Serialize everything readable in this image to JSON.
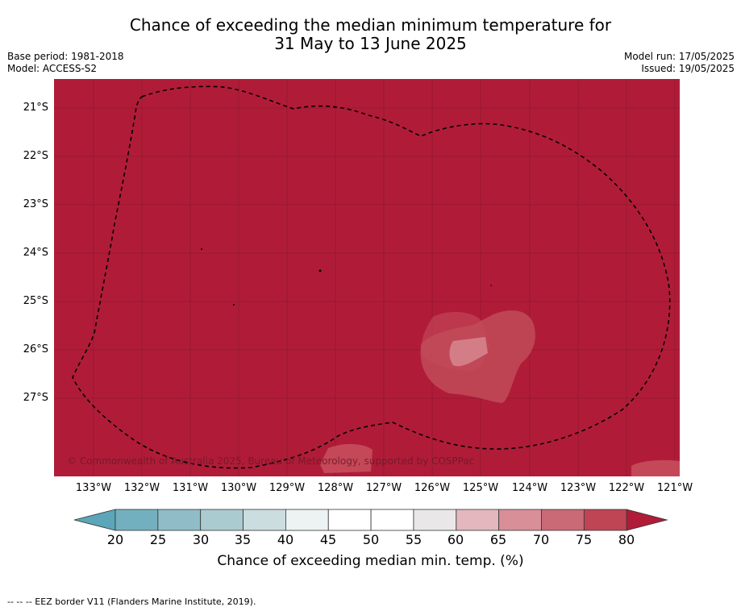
{
  "header": {
    "title_line1": "Chance of exceeding the median minimum temperature for",
    "title_line2": "31 May to 13 June 2025",
    "base_period": "Base period: 1981-2018",
    "model": "Model: ACCESS-S2",
    "model_run": "Model run: 17/05/2025",
    "issued": "Issued: 19/05/2025"
  },
  "map": {
    "latitude_labels": [
      "21°S",
      "22°S",
      "23°S",
      "24°S",
      "25°S",
      "26°S",
      "27°S"
    ],
    "longitude_labels": [
      "133°W",
      "132°W",
      "131°W",
      "130°W",
      "129°W",
      "128°W",
      "127°W",
      "126°W",
      "125°W",
      "124°W",
      "123°W",
      "122°W",
      "121°W"
    ],
    "background_color": "#b01c38",
    "copyright": "© Commonwealth of Australia 2025, Bureau of Meteorology, supported by COSPPac"
  },
  "colorbar": {
    "ticks": [
      "20",
      "25",
      "30",
      "35",
      "40",
      "45",
      "50",
      "55",
      "60",
      "65",
      "70",
      "75",
      "80"
    ],
    "colors": [
      "#5ba6b8",
      "#73b0bf",
      "#8fbcc7",
      "#aacbd0",
      "#ccdde0",
      "#edf2f3",
      "#ffffff",
      "#ffffff",
      "#e9e7e7",
      "#e3b7bd",
      "#d88f98",
      "#c96a76",
      "#bf4555",
      "#b01c38"
    ],
    "label": "Chance of exceeding median min. temp. (%)"
  },
  "footnote": "--  --  -- EEZ border V11 (Flanders Marine Institute, 2019)."
}
